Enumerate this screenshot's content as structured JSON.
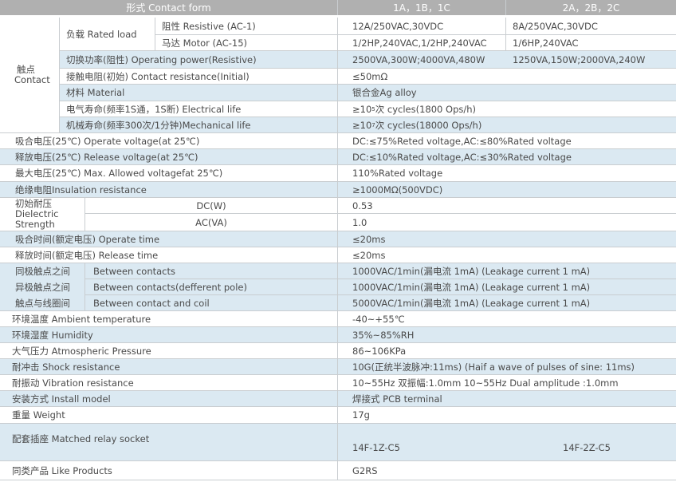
{
  "header": {
    "label": "形式 Contact form",
    "col1": "1A，1B，1C",
    "col2": "2A，2B，2C"
  },
  "contact": {
    "group_cn": "触点",
    "group_en": "Contact",
    "rated_load": "负载 Rated load",
    "resistive": {
      "label": "阻性 Resistive (AC-1)",
      "v1": "12A/250VAC,30VDC",
      "v2": "8A/250VAC,30VDC"
    },
    "motor": {
      "label": "马达 Motor (AC-15)",
      "v1": "1/2HP,240VAC,1/2HP,240VAC",
      "v2": "1/6HP,240VAC"
    },
    "power": {
      "label": "切换功率(阻性)  Operating power(Resistive)",
      "v1": "2500VA,300W;4000VA,480W",
      "v2": "1250VA,150W;2000VA,240W"
    },
    "resistance": {
      "label": "接触电阻(初始)  Contact resistance(Initial)",
      "v": "≤50mΩ"
    },
    "material": {
      "label": "材料 Material",
      "v": "银合金Ag alloy"
    },
    "electrical": {
      "label": "电气寿命(频率1S通，1S断) Electrical life",
      "pre": "≥10",
      "exp": "5",
      "post": "次 cycles(1800 Ops/h)"
    },
    "mechanical": {
      "label": "机械寿命(频率300次/1分钟)Mechanical life",
      "pre": "≥10",
      "exp": "7",
      "post": "次 cycles(18000 Ops/h)"
    }
  },
  "rows": {
    "operate_voltage": {
      "label": "吸合电压(25℃) Operate voltage(at 25℃)",
      "v": "DC:≤75%Reted voltage,AC:≤80%Rated voltage"
    },
    "release_voltage": {
      "label": "释放电压(25℃) Release voltage(at 25℃)",
      "v": "DC:≤10%Rated voltage,AC:≤30%Rated voltage"
    },
    "max_voltage": {
      "label": "最大电压(25℃) Max. Allowed voltagefat 25℃)",
      "v": "110%Rated voltage"
    },
    "insulation": {
      "label": "绝缘电阻Insulation resistance",
      "v": "≥1000MΩ(500VDC)"
    },
    "dielectric": {
      "l1": "初始耐压",
      "l2": "Dielectric",
      "l3": "Strength",
      "dc": "DC(W)",
      "dc_v": "0.53",
      "ac": "AC(VA)",
      "ac_v": "1.0"
    },
    "operate_time": {
      "label": "吸合时间(额定电压)  Operate time",
      "v": "≤20ms"
    },
    "release_time": {
      "label": "释放时间(额定电压)  Release time",
      "v": "≤20ms"
    },
    "between": [
      {
        "cn": "同极触点之间",
        "en": "Between contacts",
        "v": "1000VAC/1min(漏电流 1mA) (Leakage current 1 mA)"
      },
      {
        "cn": "异极触点之间",
        "en": "Between contacts(defferent pole)",
        "v": "1000VAC/1min(漏电流 1mA) (Leakage current 1 mA)"
      },
      {
        "cn": "触点与线圈间",
        "en": "Between contact and coil",
        "v": "5000VAC/1min(漏电流 1mA) (Leakage current 1 mA)"
      }
    ],
    "ambient": {
      "label": "环境温度 Ambient temperature",
      "v": "-40~+55℃"
    },
    "humidity": {
      "label": "环境湿度 Humidity",
      "v": "35%~85%RH"
    },
    "pressure": {
      "label": "大气压力 Atmospheric Pressure",
      "v": "86~106KPa"
    },
    "shock": {
      "label": "耐冲击 Shock resistance",
      "v": "10G(正统半波脉冲:11ms) (Haif a wave of pulses of sine: 11ms)"
    },
    "vibration": {
      "label": "耐振动 Vibration resistance",
      "v": "10~55Hz 双振幅:1.0mm 10~55Hz Dual amplitude :1.0mm"
    },
    "install": {
      "label": "安装方式 Install model",
      "v": "焊接式 PCB terminal"
    },
    "weight": {
      "label": "重量 Weight",
      "v": "17g"
    },
    "socket": {
      "label": "配套插座 Matched relay socket",
      "v1": "14F-1Z-C5",
      "v2": "14F-2Z-C5"
    },
    "like": {
      "label": "同类产品 Like Products",
      "v": "G2RS"
    }
  }
}
